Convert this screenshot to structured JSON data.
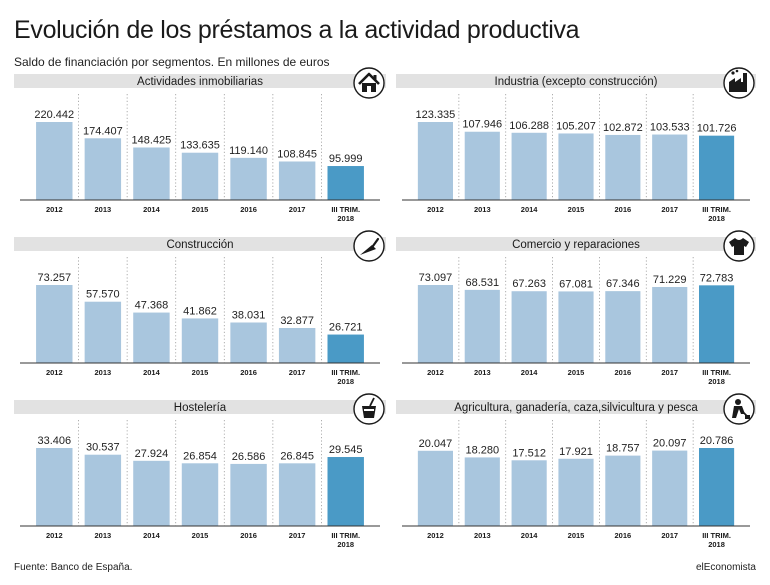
{
  "title": "Evolución de los préstamos a la actividad productiva",
  "subtitle": "Saldo de financiación por segmentos. En millones de euros",
  "footer": {
    "source": "Fuente: Banco de España.",
    "brand": "elEconomista"
  },
  "colors": {
    "bar": "#a9c6de",
    "highlight": "#4a9ac6",
    "header_bg": "#e2e2e2",
    "axis": "#333333"
  },
  "chart_data": [
    {
      "type": "bar",
      "title": "Actividades inmobiliarias",
      "icon": "house-icon",
      "categories": [
        "2012",
        "2013",
        "2014",
        "2015",
        "2016",
        "2017",
        "III TRIM.\n2018"
      ],
      "values": [
        220442,
        174407,
        148425,
        133635,
        119140,
        108845,
        95999
      ],
      "labels": [
        "220.442",
        "174.407",
        "148.425",
        "133.635",
        "119.140",
        "108.845",
        "95.999"
      ]
    },
    {
      "type": "bar",
      "title": "Industria (excepto construcción)",
      "icon": "factory-icon",
      "categories": [
        "2012",
        "2013",
        "2014",
        "2015",
        "2016",
        "2017",
        "III TRIM.\n2018"
      ],
      "values": [
        123335,
        107946,
        106288,
        105207,
        102872,
        103533,
        101726
      ],
      "labels": [
        "123.335",
        "107.946",
        "106.288",
        "105.207",
        "102.872",
        "103.533",
        "101.726"
      ]
    },
    {
      "type": "bar",
      "title": "Construcción",
      "icon": "trowel-icon",
      "categories": [
        "2012",
        "2013",
        "2014",
        "2015",
        "2016",
        "2017",
        "III TRIM.\n2018"
      ],
      "values": [
        73257,
        57570,
        47368,
        41862,
        38031,
        32877,
        26721
      ],
      "labels": [
        "73.257",
        "57.570",
        "47.368",
        "41.862",
        "38.031",
        "32.877",
        "26.721"
      ]
    },
    {
      "type": "bar",
      "title": "Comercio y reparaciones",
      "icon": "tshirt-icon",
      "categories": [
        "2012",
        "2013",
        "2014",
        "2015",
        "2016",
        "2017",
        "III TRIM.\n2018"
      ],
      "values": [
        73097,
        68531,
        67263,
        67081,
        67346,
        71229,
        72783
      ],
      "labels": [
        "73.097",
        "68.531",
        "67.263",
        "67.081",
        "67.346",
        "71.229",
        "72.783"
      ]
    },
    {
      "type": "bar",
      "title": "Hostelería",
      "icon": "drink-cup-icon",
      "categories": [
        "2012",
        "2013",
        "2014",
        "2015",
        "2016",
        "2017",
        "III TRIM.\n2018"
      ],
      "values": [
        33406,
        30537,
        27924,
        26854,
        26586,
        26845,
        29545
      ],
      "labels": [
        "33.406",
        "30.537",
        "27.924",
        "26.854",
        "26.586",
        "26.845",
        "29.545"
      ]
    },
    {
      "type": "bar",
      "title": "Agricultura, ganadería, caza,silvicultura y pesca",
      "icon": "farmer-shovel-icon",
      "categories": [
        "2012",
        "2013",
        "2014",
        "2015",
        "2016",
        "2017",
        "III TRIM.\n2018"
      ],
      "values": [
        20047,
        18280,
        17512,
        17921,
        18757,
        20097,
        20786
      ],
      "labels": [
        "20.047",
        "18.280",
        "17.512",
        "17.921",
        "18.757",
        "20.097",
        "20.786"
      ]
    }
  ]
}
